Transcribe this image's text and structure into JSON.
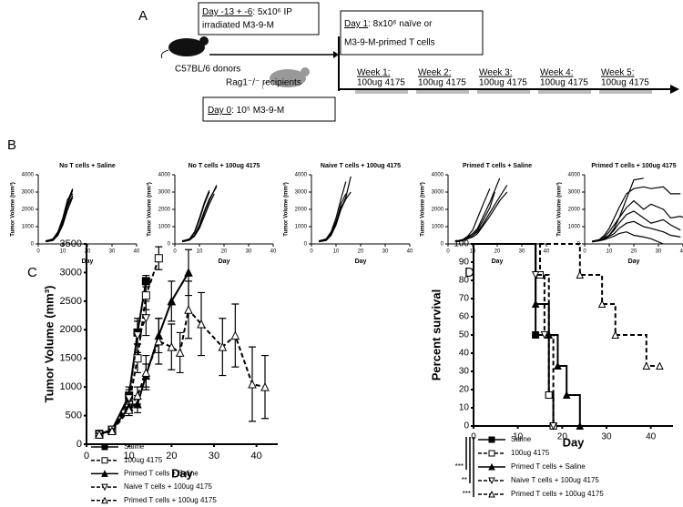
{
  "panel_labels": [
    "A",
    "B",
    "C",
    "D"
  ],
  "schematic": {
    "preimmunize": {
      "day": "Day -13 + -6",
      "text": ": 5x10⁶ IP",
      "line2": "irradiated M3-9-M"
    },
    "donors": "C57BL/6 donors",
    "recipients": "Rag1⁻/⁻ recipients",
    "day0": {
      "day": "Day 0",
      "text": ": 10⁵ M3-9-M"
    },
    "day1": {
      "day": "Day 1",
      "text": ": 8x10⁶ naïve or",
      "line2": "M3-9-M-primed T cells"
    },
    "weeks": [
      {
        "label": "Week 1:",
        "treatment": "100ug 4175"
      },
      {
        "label": "Week 2:",
        "treatment": "100ug 4175"
      },
      {
        "label": "Week 3:",
        "treatment": "100ug 4175"
      },
      {
        "label": "Week 4:",
        "treatment": "100ug 4175"
      },
      {
        "label": "Week 5:",
        "treatment": "100ug 4175"
      }
    ]
  },
  "chart_data": [
    {
      "type": "line",
      "title": "No T cells + Saline",
      "xlabel": "Day",
      "ylabel": "Tumor Volume (mm³)",
      "color": "#000000",
      "xlim": [
        0,
        40
      ],
      "xticks": [
        0,
        10,
        20,
        30,
        40
      ],
      "ylim": [
        0,
        4000
      ],
      "yticks": [
        0,
        1000,
        2000,
        3000,
        4000
      ],
      "series": [
        {
          "x": [
            3,
            6,
            8,
            10,
            12,
            14
          ],
          "values": [
            150,
            250,
            600,
            1300,
            2300,
            3100
          ]
        },
        {
          "x": [
            3,
            6,
            8,
            10,
            12,
            14
          ],
          "values": [
            150,
            300,
            700,
            1500,
            2600,
            2900
          ]
        },
        {
          "x": [
            3,
            6,
            8,
            10,
            12,
            14
          ],
          "values": [
            120,
            200,
            500,
            1100,
            2000,
            2700
          ]
        },
        {
          "x": [
            3,
            6,
            8,
            10,
            12,
            14
          ],
          "values": [
            180,
            280,
            650,
            1400,
            2500,
            3200
          ]
        },
        {
          "x": [
            3,
            6,
            8,
            10,
            12,
            14
          ],
          "values": [
            150,
            250,
            550,
            1200,
            2200,
            2800
          ]
        }
      ]
    },
    {
      "type": "line",
      "title": "No T cells + 100ug 4175",
      "xlabel": "Day",
      "ylabel": "Tumor Volume (mm³)",
      "color": "#000000",
      "xlim": [
        0,
        40
      ],
      "xticks": [
        0,
        10,
        20,
        30,
        40
      ],
      "ylim": [
        0,
        4000
      ],
      "yticks": [
        0,
        1000,
        2000,
        3000,
        4000
      ],
      "series": [
        {
          "x": [
            3,
            6,
            8,
            10,
            12,
            14,
            17
          ],
          "values": [
            150,
            250,
            500,
            1100,
            1900,
            2600,
            3300
          ]
        },
        {
          "x": [
            3,
            6,
            8,
            10,
            12,
            14
          ],
          "values": [
            150,
            300,
            700,
            1500,
            2400,
            3100
          ]
        },
        {
          "x": [
            3,
            6,
            8,
            10,
            12,
            14,
            16
          ],
          "values": [
            120,
            220,
            450,
            900,
            1600,
            2300,
            2900
          ]
        },
        {
          "x": [
            3,
            6,
            8,
            10,
            12,
            14
          ],
          "values": [
            180,
            280,
            650,
            1400,
            2300,
            3000
          ]
        },
        {
          "x": [
            3,
            6,
            8,
            10,
            12,
            14,
            17
          ],
          "values": [
            140,
            230,
            500,
            1000,
            1800,
            2500,
            3400
          ]
        }
      ]
    },
    {
      "type": "line",
      "title": "Naive T cells + 100ug 4175",
      "xlabel": "Day",
      "ylabel": "Tumor Volume (mm³)",
      "color": "#000000",
      "xlim": [
        0,
        40
      ],
      "xticks": [
        0,
        10,
        20,
        30,
        40
      ],
      "ylim": [
        0,
        4000
      ],
      "yticks": [
        0,
        1000,
        2000,
        3000,
        4000
      ],
      "series": [
        {
          "x": [
            3,
            6,
            8,
            10,
            12,
            14,
            16
          ],
          "values": [
            150,
            250,
            600,
            1200,
            2000,
            2700,
            3900
          ]
        },
        {
          "x": [
            3,
            6,
            8,
            10,
            12,
            14
          ],
          "values": [
            150,
            300,
            700,
            1500,
            2600,
            3600
          ]
        },
        {
          "x": [
            3,
            6,
            8,
            10,
            12,
            14
          ],
          "values": [
            120,
            200,
            500,
            1100,
            2000,
            2600
          ]
        },
        {
          "x": [
            3,
            6,
            8,
            10,
            12,
            14,
            16
          ],
          "values": [
            180,
            280,
            650,
            1300,
            2100,
            2600,
            3000
          ]
        },
        {
          "x": [
            3,
            6,
            8,
            10,
            12,
            14
          ],
          "values": [
            150,
            250,
            550,
            1200,
            2300,
            2900
          ]
        }
      ]
    },
    {
      "type": "line",
      "title": "Primed T cells + Saline",
      "xlabel": "Day",
      "ylabel": "Tumor Volume (mm³)",
      "color": "#000000",
      "xlim": [
        0,
        40
      ],
      "xticks": [
        0,
        10,
        20,
        30,
        40
      ],
      "ylim": [
        0,
        4000
      ],
      "yticks": [
        0,
        1000,
        2000,
        3000,
        4000
      ],
      "series": [
        {
          "x": [
            3,
            6,
            8,
            10,
            12,
            14,
            17
          ],
          "values": [
            150,
            250,
            450,
            800,
            1500,
            2200,
            3200
          ]
        },
        {
          "x": [
            3,
            6,
            8,
            10,
            12,
            14,
            17,
            20,
            24
          ],
          "values": [
            130,
            200,
            300,
            500,
            700,
            1100,
            1800,
            2500,
            3400
          ]
        },
        {
          "x": [
            3,
            6,
            8,
            10,
            12,
            14,
            17,
            21
          ],
          "values": [
            150,
            220,
            400,
            600,
            900,
            1500,
            2400,
            3800
          ]
        },
        {
          "x": [
            3,
            6,
            8,
            10,
            12,
            14,
            17,
            19
          ],
          "values": [
            160,
            250,
            350,
            500,
            800,
            1300,
            2100,
            3000
          ]
        },
        {
          "x": [
            3,
            6,
            8,
            10,
            12,
            14,
            17,
            21,
            24
          ],
          "values": [
            120,
            180,
            300,
            400,
            600,
            1000,
            1600,
            2500,
            3000
          ]
        }
      ]
    },
    {
      "type": "line",
      "title": "Primed T cells + 100ug 4175",
      "xlabel": "Day",
      "ylabel": "Tumor Volume (mm³)",
      "color": "#000000",
      "xlim": [
        0,
        40
      ],
      "xticks": [
        0,
        10,
        20,
        30,
        40
      ],
      "ylim": [
        0,
        4000
      ],
      "yticks": [
        0,
        1000,
        2000,
        3000,
        4000
      ],
      "series": [
        {
          "x": [
            3,
            6,
            8,
            10,
            12,
            14,
            17,
            20,
            24,
            27,
            32,
            35,
            39
          ],
          "values": [
            150,
            250,
            500,
            900,
            1500,
            2100,
            2900,
            3200,
            3300,
            3200,
            3300,
            2900,
            2900
          ]
        },
        {
          "x": [
            3,
            6,
            8,
            10,
            12,
            14,
            17,
            20,
            24,
            27,
            32,
            35,
            39,
            42
          ],
          "values": [
            150,
            220,
            400,
            700,
            1100,
            1500,
            2100,
            2500,
            2000,
            2300,
            2000,
            1500,
            1600,
            1400
          ]
        },
        {
          "x": [
            3,
            6,
            8,
            10,
            12,
            14,
            17,
            20,
            24,
            27,
            32,
            35,
            39
          ],
          "values": [
            130,
            200,
            350,
            500,
            800,
            1200,
            1700,
            1900,
            1500,
            1200,
            1400,
            1100,
            800
          ]
        },
        {
          "x": [
            3,
            6,
            8,
            10,
            12,
            14,
            17,
            20,
            24,
            27,
            32,
            35,
            39
          ],
          "values": [
            160,
            240,
            300,
            450,
            600,
            900,
            1200,
            1300,
            1000,
            900,
            700,
            500,
            400
          ]
        },
        {
          "x": [
            3,
            6,
            8,
            10,
            12,
            14,
            17,
            20,
            24,
            27,
            32
          ],
          "values": [
            120,
            180,
            250,
            350,
            450,
            600,
            700,
            500,
            400,
            300,
            0
          ]
        },
        {
          "x": [
            3,
            6,
            8,
            10,
            12,
            14,
            17,
            20,
            24
          ],
          "values": [
            140,
            200,
            300,
            500,
            900,
            1500,
            2600,
            3700,
            3800
          ]
        }
      ]
    },
    {
      "type": "errorline",
      "xlabel": "Day",
      "ylabel": "Tumor Volume (mm³)",
      "color": "#000000",
      "xlim": [
        0,
        45
      ],
      "xticks": [
        0,
        10,
        20,
        30,
        40
      ],
      "ylim": [
        0,
        3500
      ],
      "yticks": [
        0,
        500,
        1000,
        1500,
        2000,
        2500,
        3000,
        3500
      ],
      "series": [
        {
          "name": "Saline",
          "marker": "square",
          "line_style": "solid",
          "x": [
            3,
            6,
            10,
            12,
            14
          ],
          "values": [
            180,
            250,
            850,
            1950,
            2850
          ],
          "errors": [
            20,
            30,
            150,
            200,
            100
          ]
        },
        {
          "name": "100ug 4175",
          "marker": "square-open",
          "line_style": "dashed",
          "x": [
            3,
            6,
            10,
            12,
            14,
            17
          ],
          "values": [
            170,
            250,
            700,
            1500,
            2600,
            3250
          ],
          "errors": [
            20,
            30,
            120,
            250,
            250,
            200
          ]
        },
        {
          "name": "Primed T cells + Saline",
          "marker": "triangle",
          "line_style": "solid",
          "x": [
            3,
            6,
            10,
            12,
            14,
            17,
            20,
            24
          ],
          "values": [
            170,
            250,
            650,
            700,
            1200,
            1900,
            2500,
            3000
          ],
          "errors": [
            20,
            40,
            100,
            150,
            200,
            300,
            350,
            400
          ]
        },
        {
          "name": "Naive T cells + 100ug 4175",
          "marker": "triangle-down-open",
          "line_style": "dashed",
          "x": [
            3,
            6,
            10,
            12,
            14
          ],
          "values": [
            170,
            250,
            800,
            1900,
            2200
          ],
          "errors": [
            20,
            30,
            150,
            300,
            300
          ]
        },
        {
          "name": "Primed T cells + 100ug 4175",
          "marker": "triangle-open",
          "line_style": "dashed",
          "x": [
            3,
            6,
            10,
            12,
            14,
            17,
            20,
            22,
            24,
            27,
            32,
            35,
            39,
            42
          ],
          "values": [
            170,
            230,
            600,
            850,
            1250,
            1800,
            1700,
            1600,
            2350,
            2100,
            1700,
            1900,
            1050,
            1000
          ],
          "errors": [
            20,
            30,
            100,
            150,
            300,
            400,
            400,
            350,
            500,
            550,
            500,
            550,
            650,
            550
          ]
        }
      ]
    },
    {
      "type": "step",
      "xlabel": "Day",
      "ylabel": "Percent survival",
      "color": "#000000",
      "xlim": [
        0,
        45
      ],
      "xticks": [
        0,
        10,
        20,
        30,
        40
      ],
      "ylim": [
        0,
        100
      ],
      "yticks": [
        0,
        10,
        20,
        30,
        40,
        50,
        60,
        70,
        80,
        90,
        100
      ],
      "series": [
        {
          "name": "Saline",
          "marker": "square",
          "line_style": "solid",
          "x": [
            0,
            14,
            17,
            18
          ],
          "values": [
            100,
            50,
            17,
            0
          ]
        },
        {
          "name": "100ug 4175",
          "marker": "square-open",
          "line_style": "dashed",
          "x": [
            0,
            15,
            17,
            18
          ],
          "values": [
            100,
            83,
            17,
            0
          ]
        },
        {
          "name": "Primed T cells + Saline",
          "marker": "triangle",
          "line_style": "solid",
          "x": [
            0,
            14,
            17,
            19,
            21,
            24
          ],
          "values": [
            100,
            67,
            50,
            33,
            17,
            0
          ]
        },
        {
          "name": "Naive T cells + 100ug 4175",
          "marker": "triangle-down-open",
          "line_style": "dashed",
          "x": [
            0,
            14,
            16,
            18
          ],
          "values": [
            100,
            83,
            50,
            0
          ]
        },
        {
          "name": "Primed T cells + 100ug 4175",
          "marker": "triangle-open",
          "line_style": "dashed",
          "x": [
            0,
            24,
            29,
            32,
            39,
            42
          ],
          "values": [
            100,
            83,
            67,
            50,
            33,
            33
          ]
        }
      ],
      "significance": [
        "***",
        "**",
        "***"
      ]
    }
  ]
}
